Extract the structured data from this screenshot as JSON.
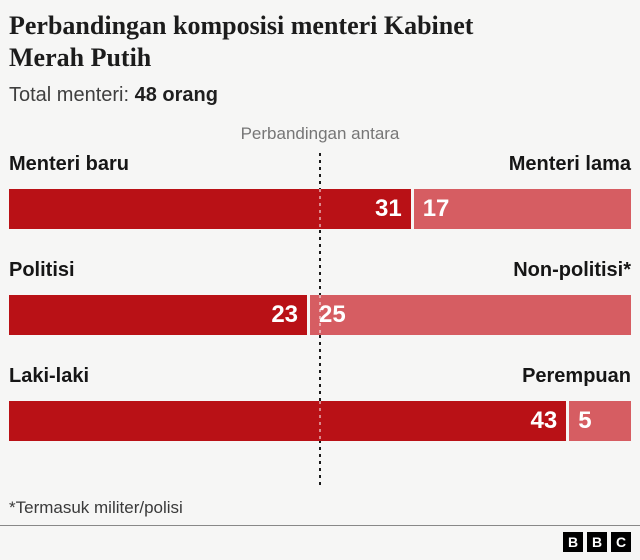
{
  "header": {
    "title": "Perbandingan komposisi menteri Kabinet Merah Putih",
    "subtitle_label": "Total menteri:",
    "subtitle_value": "48 orang"
  },
  "chart_data": {
    "type": "bar",
    "variant": "split-horizontal-comparison",
    "title": "Perbandingan komposisi menteri Kabinet Merah Putih",
    "subtitle": "Total menteri: 48 orang",
    "center_label": "Perbandingan antara",
    "total": 48,
    "colors": {
      "left_segment": "#b91116",
      "right_segment": "#d65d62",
      "value_text": "#ffffff",
      "background": "#f6f6f5"
    },
    "rows": [
      {
        "left_label": "Menteri baru",
        "right_label": "Menteri lama",
        "left_value": 31,
        "right_value": 17
      },
      {
        "left_label": "Politisi",
        "right_label": "Non-politisi*",
        "left_value": 23,
        "right_value": 25
      },
      {
        "left_label": "Laki-laki",
        "right_label": "Perempuan",
        "left_value": 43,
        "right_value": 5
      }
    ]
  },
  "footer": {
    "footnote": "*Termasuk militer/polisi",
    "logo_blocks": [
      "B",
      "B",
      "C"
    ]
  }
}
